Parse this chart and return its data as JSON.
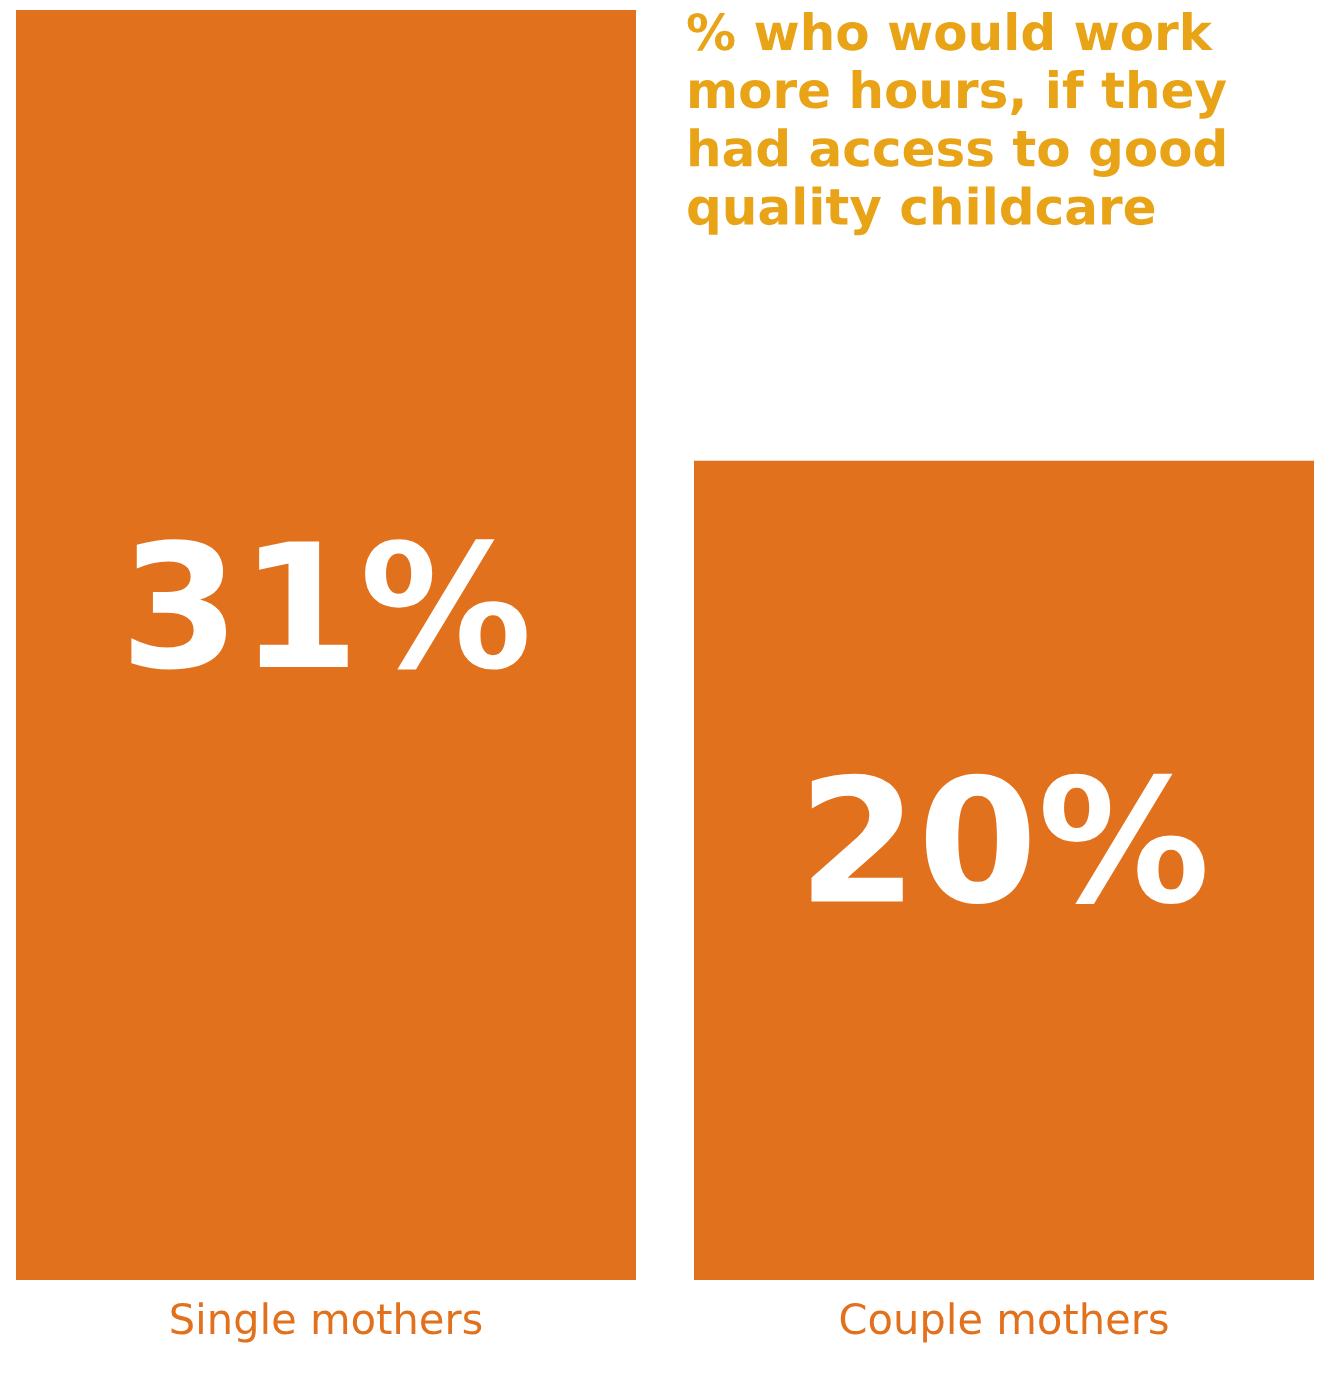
{
  "chart_data": {
    "type": "bar",
    "title": "% who would work more hours, if they had access to good quality childcare",
    "categories": [
      "Single mothers",
      "Couple mothers"
    ],
    "values": [
      31,
      20
    ],
    "value_labels": [
      "31%",
      "20%"
    ],
    "color": "#e2711d"
  }
}
